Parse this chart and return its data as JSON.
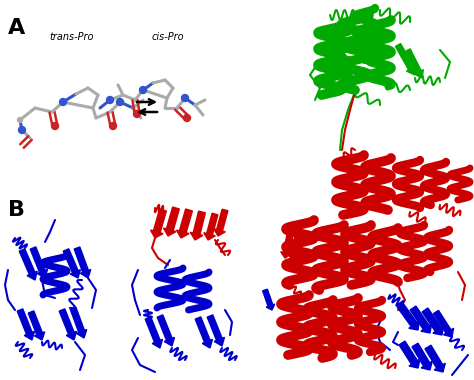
{
  "background_color": "#ffffff",
  "label_A": "A",
  "label_B": "B",
  "label_trans": "trans-Pro",
  "label_cis": "cis-Pro",
  "colors": {
    "green": "#00aa00",
    "red": "#cc0000",
    "blue": "#0000cc",
    "bond_gray": "#aaaaaa",
    "nitrogen_blue": "#3355cc",
    "oxygen_red": "#cc2222",
    "black": "#000000",
    "white": "#ffffff"
  },
  "fig_width": 4.74,
  "fig_height": 3.8,
  "dpi": 100
}
